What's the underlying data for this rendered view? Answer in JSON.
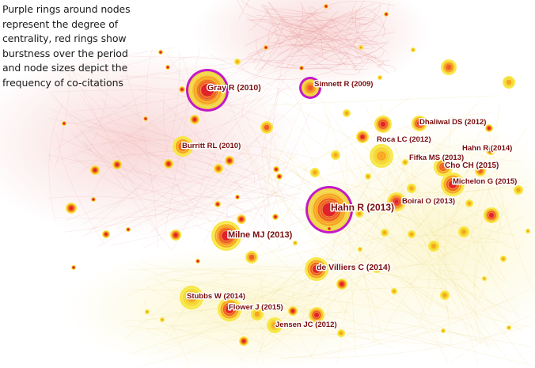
{
  "caption": "Purple rings around nodes represent the degree of centrality, red rings show burstness over the period and node sizes depict the frequency of co-citations",
  "colors": {
    "centrality_ring": "#c21ac8",
    "burst": "#e0232a",
    "citation_low": "#f6e63a",
    "citation_mid": "#f6a11c",
    "citation_high": "#ed5a1f",
    "background": "#ffffff"
  },
  "labeled_nodes": [
    {
      "label": "Gray R (2010)",
      "centrality": true
    },
    {
      "label": "Simnett R (2009)",
      "centrality": true
    },
    {
      "label": "Dhaliwal DS (2012)",
      "centrality": false
    },
    {
      "label": "Roca LC (2012)",
      "centrality": false
    },
    {
      "label": "Burritt RL (2010)",
      "centrality": false
    },
    {
      "label": "Hahn R (2014)",
      "centrality": false
    },
    {
      "label": "Fifka MS (2013)",
      "centrality": false
    },
    {
      "label": "Cho CH (2015)",
      "centrality": false
    },
    {
      "label": "Michelon G (2015)",
      "centrality": false
    },
    {
      "label": "Boiral O (2013)",
      "centrality": false
    },
    {
      "label": "Hahn R (2013)",
      "centrality": true
    },
    {
      "label": "Milne MJ (2013)",
      "centrality": false
    },
    {
      "label": "de Villiers C (2014)",
      "centrality": false
    },
    {
      "label": "Stubbs W (2014)",
      "centrality": false
    },
    {
      "label": "Flower J (2015)",
      "centrality": false
    },
    {
      "label": "Jensen JC (2012)",
      "centrality": false
    }
  ]
}
